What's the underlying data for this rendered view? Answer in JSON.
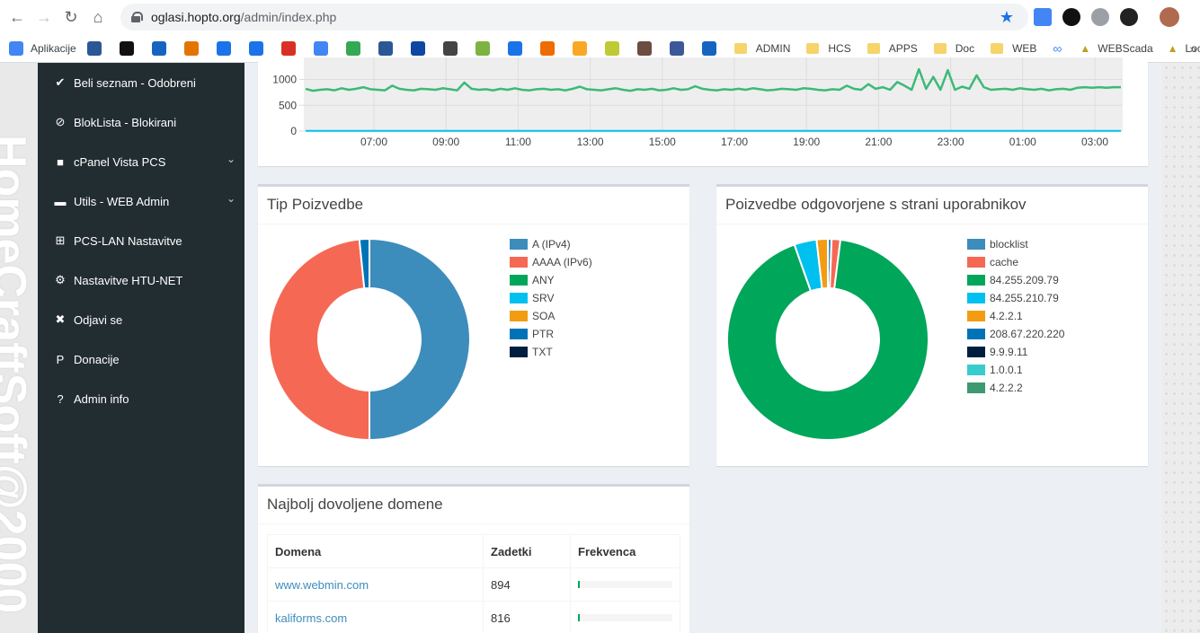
{
  "browser": {
    "url_host": "oglasi.hopto.org",
    "url_path": "/admin/index.php",
    "bookmarks": [
      {
        "label": "Aplikacije",
        "color": "#4285f4"
      },
      {
        "label": "",
        "color": "#2b5797"
      },
      {
        "label": "",
        "color": "#111111"
      },
      {
        "label": "",
        "color": "#1565c0"
      },
      {
        "label": "",
        "color": "#e37400"
      },
      {
        "label": "",
        "color": "#1a73e8"
      },
      {
        "label": "",
        "color": "#1a73e8"
      },
      {
        "label": "",
        "color": "#d93025"
      },
      {
        "label": "",
        "color": "#4285f4"
      },
      {
        "label": "",
        "color": "#34a853"
      },
      {
        "label": "",
        "color": "#2b5797"
      },
      {
        "label": "",
        "color": "#0d47a1"
      },
      {
        "label": "",
        "color": "#444444"
      },
      {
        "label": "",
        "color": "#7cb342"
      },
      {
        "label": "",
        "color": "#1a73e8"
      },
      {
        "label": "",
        "color": "#ef6c00"
      },
      {
        "label": "",
        "color": "#f9a825"
      },
      {
        "label": "",
        "color": "#c0ca33"
      },
      {
        "label": "",
        "color": "#6d4c41"
      },
      {
        "label": "",
        "color": "#3b5998"
      },
      {
        "label": "",
        "color": "#1565c0"
      }
    ],
    "folders": [
      "ADMIN",
      "HCS",
      "APPS",
      "Doc",
      "WEB"
    ],
    "tail": [
      "WEBScada",
      "Local"
    ]
  },
  "watermark": "HomeCraftSoft@2000",
  "sidebar": {
    "items": [
      {
        "label": "Beli seznam - Odobreni",
        "icon": "check-circle-icon",
        "glyph": "✔"
      },
      {
        "label": "BlokLista - Blokirani",
        "icon": "ban-icon",
        "glyph": "⊘"
      },
      {
        "label": "cPanel Vista PCS",
        "icon": "square-icon",
        "glyph": "■",
        "caret": true
      },
      {
        "label": "Utils - WEB Admin",
        "icon": "folder-icon",
        "glyph": "▬",
        "caret": true
      },
      {
        "label": "PCS-LAN Nastavitve",
        "icon": "sitemap-icon",
        "glyph": "⊞"
      },
      {
        "label": "Nastavitve HTU-NET",
        "icon": "cogs-icon",
        "glyph": "⚙"
      },
      {
        "label": "Odjavi se",
        "icon": "user-times-icon",
        "glyph": "✖"
      },
      {
        "label": "Donacije",
        "icon": "paypal-icon",
        "glyph": "P"
      },
      {
        "label": "Admin info",
        "icon": "question-circle-icon",
        "glyph": "?"
      }
    ]
  },
  "chart_data": [
    {
      "type": "line",
      "title": "",
      "x_ticks": [
        "07:00",
        "09:00",
        "11:00",
        "13:00",
        "15:00",
        "17:00",
        "19:00",
        "21:00",
        "23:00",
        "01:00",
        "03:00"
      ],
      "y_ticks": [
        "1000",
        "500",
        "0"
      ],
      "ylim": [
        0,
        1200
      ],
      "series": [
        {
          "color": "#3cba77",
          "values": [
            820,
            780,
            800,
            810,
            790,
            830,
            800,
            820,
            850,
            810,
            800,
            790,
            880,
            820,
            800,
            790,
            820,
            810,
            800,
            830,
            810,
            790,
            940,
            820,
            800,
            810,
            790,
            820,
            800,
            830,
            800,
            790,
            810,
            820,
            800,
            810,
            790,
            820,
            860,
            810,
            800,
            790,
            810,
            830,
            800,
            780,
            810,
            800,
            820,
            790,
            800,
            830,
            800,
            810,
            870,
            820,
            800,
            790,
            810,
            800,
            820,
            800,
            830,
            810,
            790,
            800,
            820,
            810,
            800,
            830,
            820,
            800,
            790,
            810,
            800,
            880,
            820,
            800,
            910,
            820,
            850,
            800,
            950,
            880,
            800,
            1200,
            820,
            1050,
            800,
            1180,
            800,
            860,
            820,
            1080,
            850,
            800,
            810,
            820,
            800,
            830,
            810,
            800,
            820,
            790,
            810,
            820,
            800,
            840,
            850,
            840,
            850,
            840,
            850,
            850
          ]
        },
        {
          "color": "#00c0ef",
          "values": [
            5,
            5,
            5,
            5,
            5,
            5,
            5,
            5,
            5,
            5,
            5,
            5,
            5,
            5,
            5,
            5,
            5,
            5,
            5,
            5
          ]
        }
      ],
      "grid": true
    },
    {
      "type": "pie",
      "title": "Tip Poizvedbe",
      "categories": [
        "A (IPv4)",
        "AAAA (IPv6)",
        "ANY",
        "SRV",
        "SOA",
        "PTR",
        "TXT"
      ],
      "values": [
        50.0,
        48.4,
        0,
        0,
        0,
        1.6,
        0
      ],
      "colors": [
        "#3c8dbc",
        "#f56954",
        "#00a65a",
        "#00c0ef",
        "#f39c12",
        "#0073b7",
        "#001f3f"
      ],
      "legend": "right"
    },
    {
      "type": "pie",
      "title": "Poizvedbe odgovorjene s strani uporabnikov",
      "categories": [
        "blocklist",
        "cache",
        "84.255.209.79",
        "84.255.210.79",
        "4.2.2.1",
        "208.67.220.220",
        "9.9.9.11",
        "1.0.0.1",
        "4.2.2.2"
      ],
      "values": [
        0.6,
        1.4,
        92.6,
        3.6,
        1.8,
        0,
        0,
        0,
        0
      ],
      "colors": [
        "#3c8dbc",
        "#f56954",
        "#00a65a",
        "#00c0ef",
        "#f39c12",
        "#0073b7",
        "#001f3f",
        "#39cccc",
        "#3d9970"
      ],
      "legend": "right"
    }
  ],
  "domains": {
    "title": "Najbolj dovoljene domene",
    "headers": [
      "Domena",
      "Zadetki",
      "Frekvenca"
    ],
    "rows": [
      {
        "domain": "www.webmin.com",
        "hits": "894",
        "freq": 0.012
      },
      {
        "domain": "kaliforms.com",
        "hits": "816",
        "freq": 0.011
      }
    ]
  }
}
